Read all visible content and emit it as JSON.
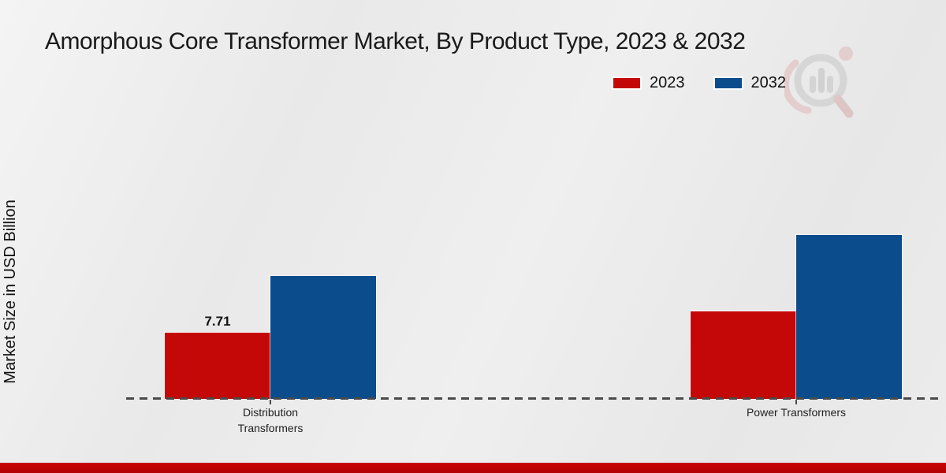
{
  "title": "Amorphous Core Transformer Market, By Product Type, 2023 & 2032",
  "y_axis_label": "Market Size in USD Billion",
  "legend": {
    "position": "top-right",
    "items": [
      {
        "label": "2023",
        "color": "#c40808"
      },
      {
        "label": "2032",
        "color": "#0b4d8c"
      }
    ]
  },
  "colors": {
    "bar_2023": "#c40808",
    "bar_2032": "#0b4d8c",
    "footer_bar": "#c20202",
    "axis_line": "#4a4a4a",
    "background": "#ececec"
  },
  "watermark": {
    "icon": "market-research-future-logo"
  },
  "chart_data": {
    "type": "bar",
    "title": "Amorphous Core Transformer Market, By Product Type, 2023 & 2032",
    "categories": [
      "Distribution Transformers",
      "Power Transformers"
    ],
    "series": [
      {
        "name": "2023",
        "color": "#c40808",
        "values": [
          7.71,
          10.2
        ]
      },
      {
        "name": "2032",
        "color": "#0b4d8c",
        "values": [
          14.3,
          19.1
        ]
      }
    ],
    "value_labels": [
      {
        "series_index": 0,
        "category_index": 0,
        "text": "7.71"
      }
    ],
    "xlabel": "",
    "ylabel": "Market Size in USD Billion",
    "ylim": [
      0,
      22
    ],
    "grid": false,
    "y_axis_ticks_visible": false,
    "baseline_style": "dashed",
    "legend_position": "top-right"
  }
}
